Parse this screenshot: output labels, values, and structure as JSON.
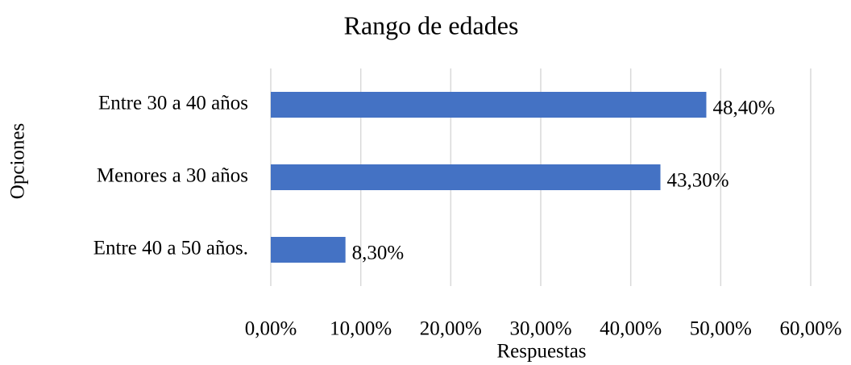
{
  "chart_data": {
    "type": "hbar",
    "title": "Rango de edades",
    "xlabel": "Respuestas",
    "ylabel": "Opciones",
    "categories": [
      "Entre 30 a 40 años",
      "Menores a 30 años",
      "Entre 40 a 50 años."
    ],
    "values": [
      48.4,
      43.3,
      8.3
    ],
    "value_labels": [
      "48,40%",
      "43,30%",
      "8,30%"
    ],
    "color": "#4472c4",
    "xlim": [
      0,
      60
    ],
    "xticks": [
      {
        "value": 0,
        "label": "0,00%"
      },
      {
        "value": 10,
        "label": "10,00%"
      },
      {
        "value": 20,
        "label": "20,00%"
      },
      {
        "value": 30,
        "label": "30,00%"
      },
      {
        "value": 40,
        "label": "40,00%"
      },
      {
        "value": 50,
        "label": "50,00%"
      },
      {
        "value": 60,
        "label": "60,00%"
      }
    ],
    "grid": true
  }
}
